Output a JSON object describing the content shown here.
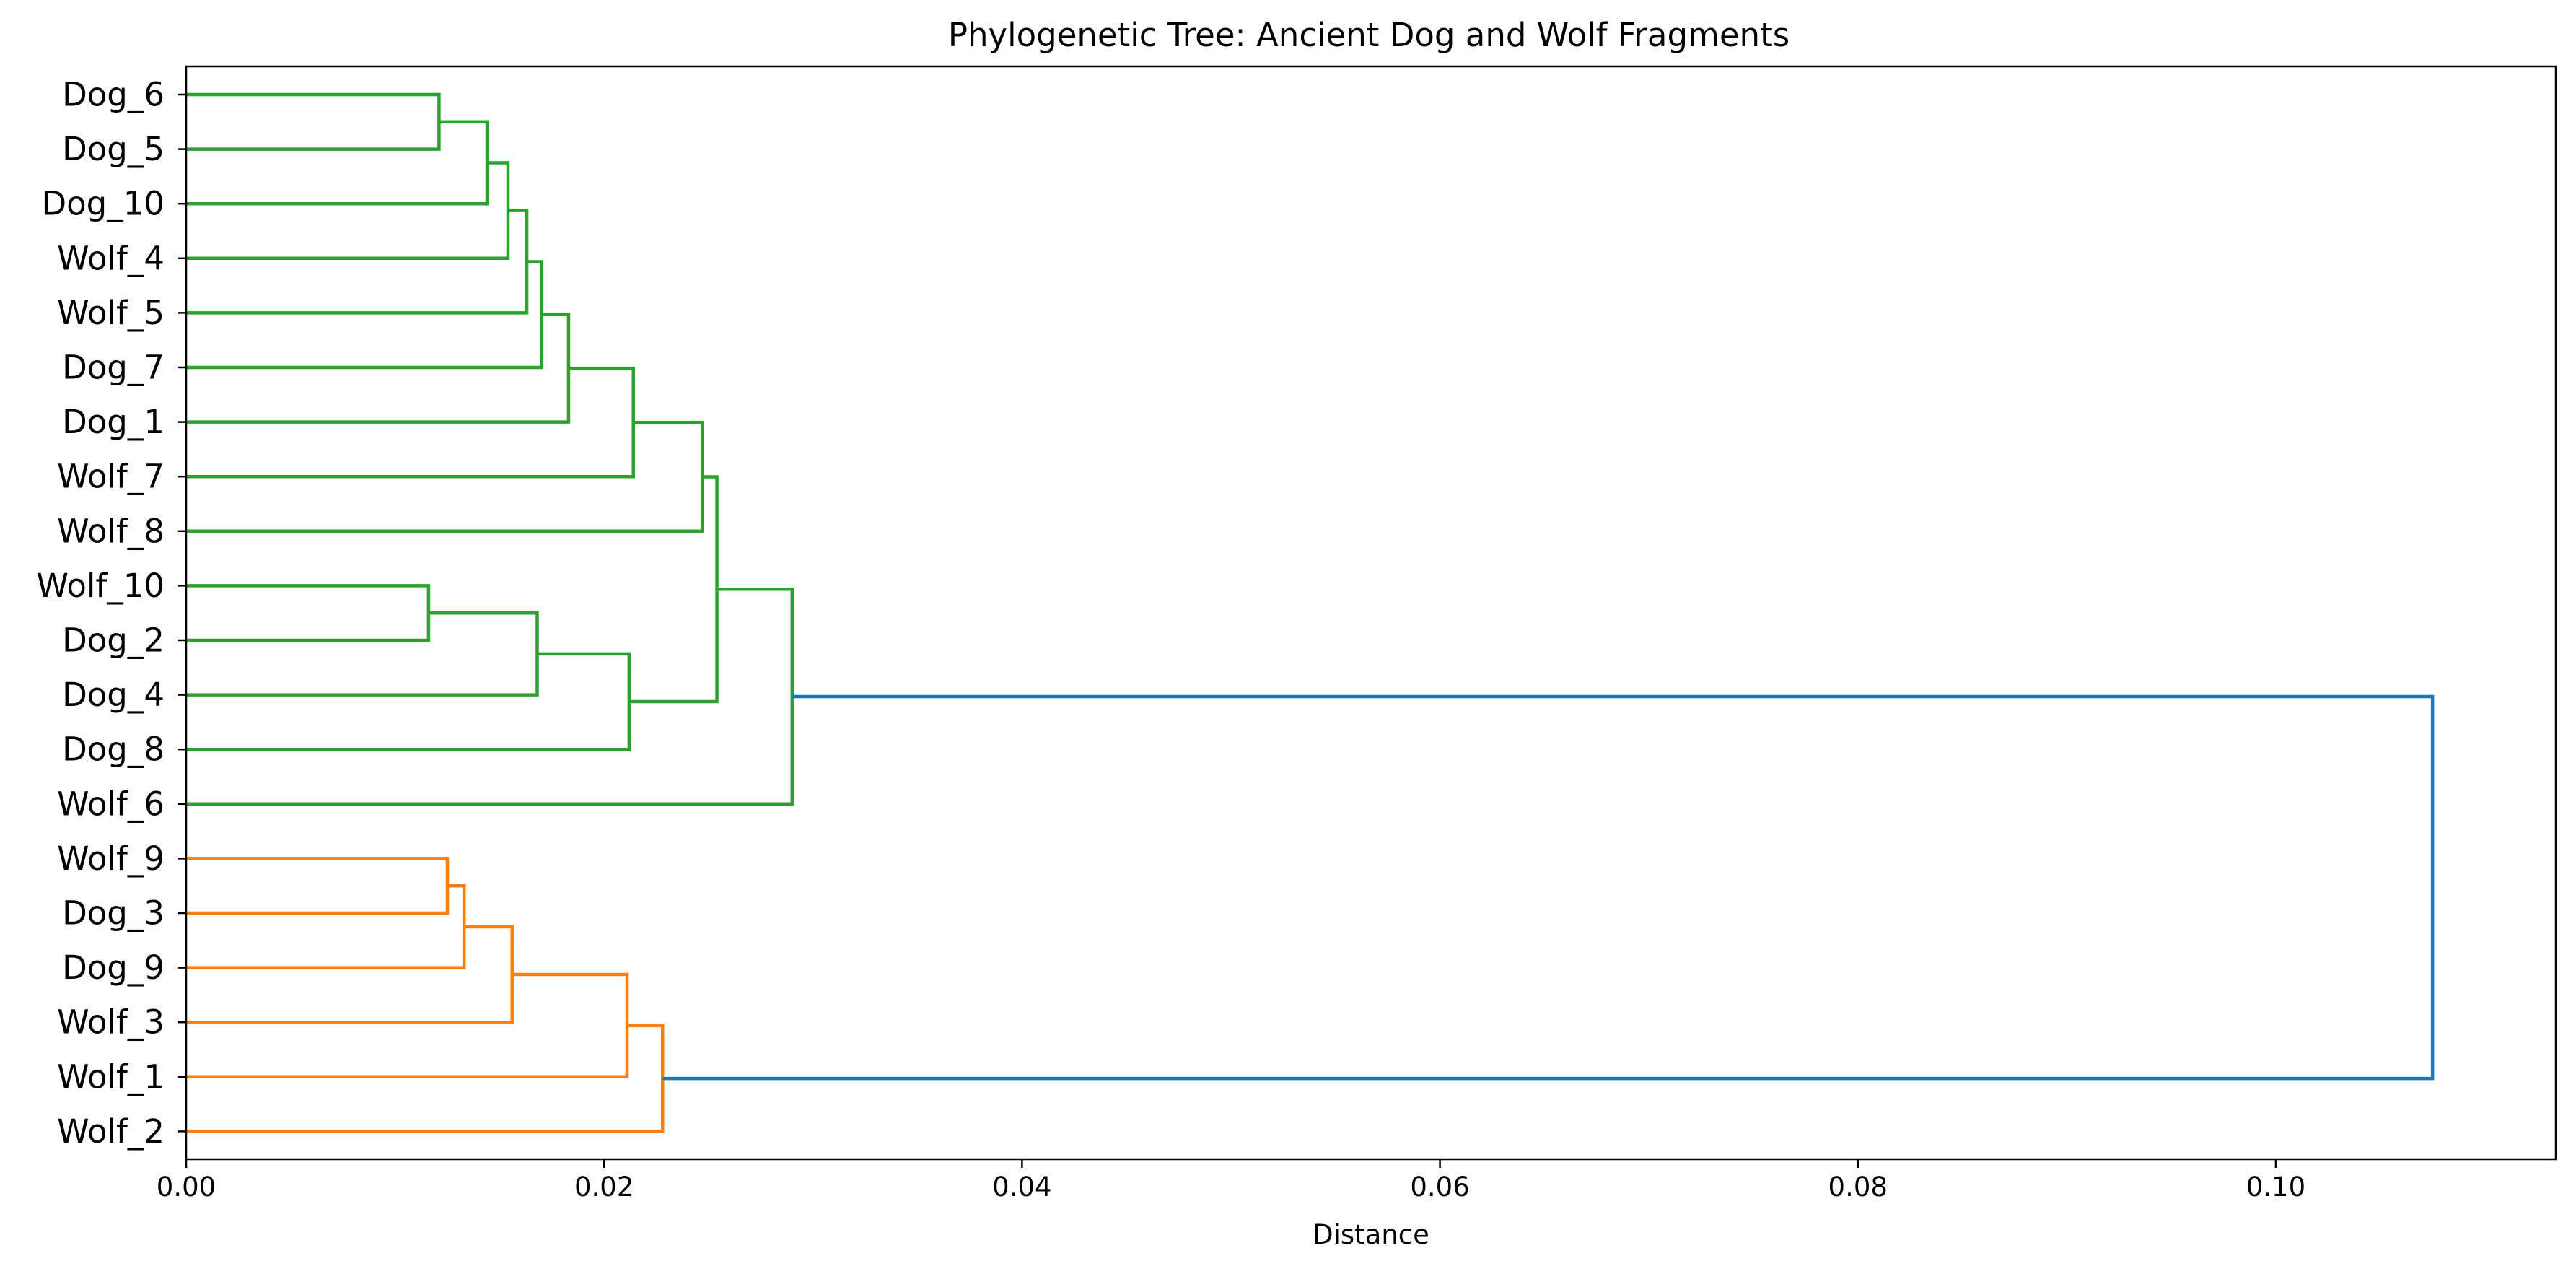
{
  "chart_data": {
    "type": "dendrogram",
    "orientation": "horizontal",
    "title": "Phylogenetic Tree: Ancient Dog and Wolf Fragments",
    "xlabel": "Distance",
    "ylabel": "",
    "xlim": [
      0,
      0.1134
    ],
    "xticks": [
      0.0,
      0.02,
      0.04,
      0.06,
      0.08,
      0.1
    ],
    "xtick_labels": [
      "0.00",
      "0.02",
      "0.04",
      "0.06",
      "0.08",
      "0.10"
    ],
    "grid": false,
    "leaves": [
      "Dog_6",
      "Dog_5",
      "Dog_10",
      "Wolf_4",
      "Wolf_5",
      "Dog_7",
      "Dog_1",
      "Wolf_7",
      "Wolf_8",
      "Wolf_10",
      "Dog_2",
      "Dog_4",
      "Dog_8",
      "Wolf_6",
      "Wolf_9",
      "Dog_3",
      "Dog_9",
      "Wolf_3",
      "Wolf_1",
      "Wolf_2"
    ],
    "colors": {
      "cluster_1": "#2ca02c",
      "cluster_2": "#ff7f0e",
      "root": "#1f77b4"
    },
    "merges": [
      {
        "left": "Dog_6",
        "right": "Dog_5",
        "distance": 0.0121,
        "color": "#2ca02c"
      },
      {
        "left": "m1",
        "right": "Dog_10",
        "distance": 0.0144,
        "color": "#2ca02c"
      },
      {
        "left": "m2",
        "right": "Wolf_4",
        "distance": 0.0154,
        "color": "#2ca02c"
      },
      {
        "left": "m3",
        "right": "Wolf_5",
        "distance": 0.0163,
        "color": "#2ca02c"
      },
      {
        "left": "m4",
        "right": "Dog_7",
        "distance": 0.017,
        "color": "#2ca02c"
      },
      {
        "left": "m5",
        "right": "Dog_1",
        "distance": 0.0183,
        "color": "#2ca02c"
      },
      {
        "left": "m6",
        "right": "Wolf_7",
        "distance": 0.0214,
        "color": "#2ca02c"
      },
      {
        "left": "m7",
        "right": "Wolf_8",
        "distance": 0.0247,
        "color": "#2ca02c"
      },
      {
        "left": "Wolf_10",
        "right": "Dog_2",
        "distance": 0.0116,
        "color": "#2ca02c"
      },
      {
        "left": "m9",
        "right": "Dog_4",
        "distance": 0.0168,
        "color": "#2ca02c"
      },
      {
        "left": "m10",
        "right": "Dog_8",
        "distance": 0.0212,
        "color": "#2ca02c"
      },
      {
        "left": "m8",
        "right": "m11",
        "distance": 0.0254,
        "color": "#2ca02c"
      },
      {
        "left": "m12",
        "right": "Wolf_6",
        "distance": 0.029,
        "color": "#2ca02c"
      },
      {
        "left": "Wolf_9",
        "right": "Dog_3",
        "distance": 0.0125,
        "color": "#ff7f0e"
      },
      {
        "left": "m14",
        "right": "Dog_9",
        "distance": 0.0133,
        "color": "#ff7f0e"
      },
      {
        "left": "m15",
        "right": "Wolf_3",
        "distance": 0.0156,
        "color": "#ff7f0e"
      },
      {
        "left": "m16",
        "right": "Wolf_1",
        "distance": 0.0211,
        "color": "#ff7f0e"
      },
      {
        "left": "m17",
        "right": "Wolf_2",
        "distance": 0.0228,
        "color": "#ff7f0e"
      },
      {
        "left": "m13",
        "right": "m18",
        "distance": 0.1075,
        "color": "#1f77b4"
      }
    ]
  }
}
